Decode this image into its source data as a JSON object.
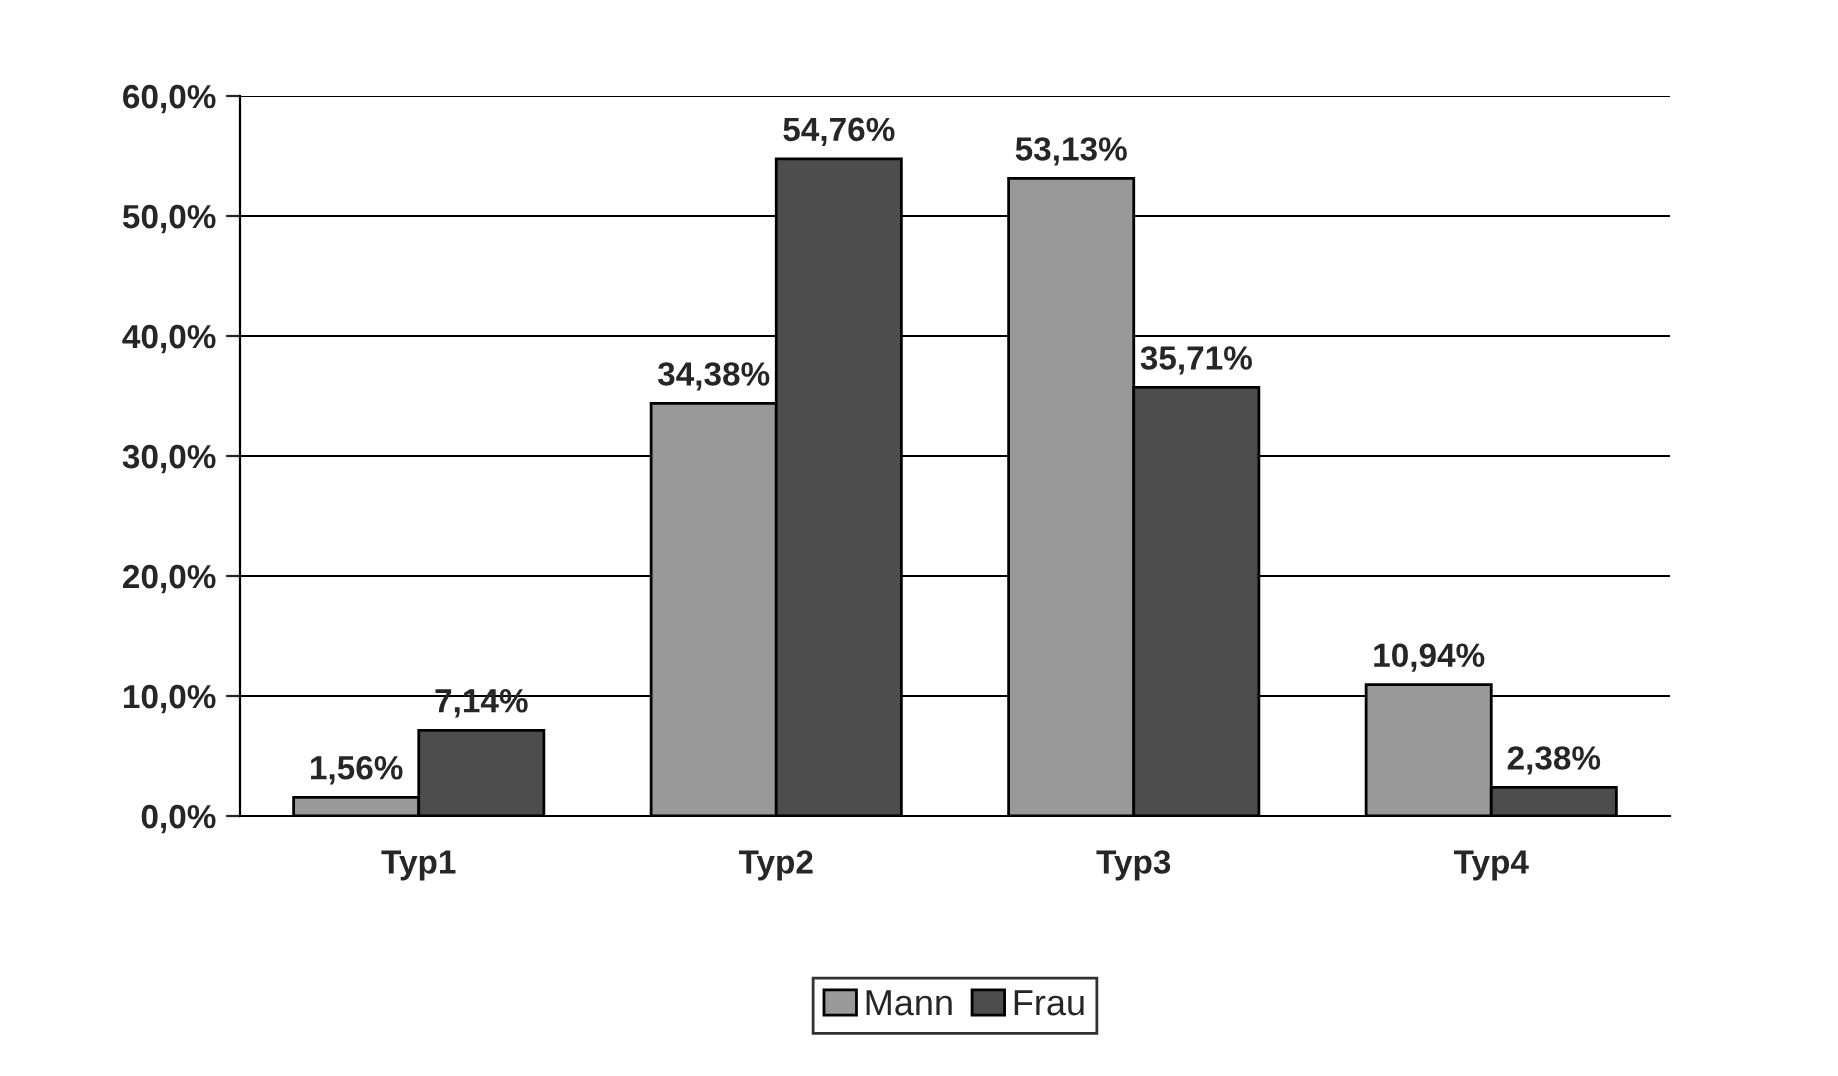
{
  "chart_data": {
    "type": "bar",
    "categories": [
      "Typ1",
      "Typ2",
      "Typ3",
      "Typ4"
    ],
    "series": [
      {
        "name": "Mann",
        "color": "#999999",
        "values": [
          1.56,
          34.38,
          53.13,
          10.94
        ],
        "value_labels": [
          "1,56%",
          "34,38%",
          "53,13%",
          "10,94%"
        ]
      },
      {
        "name": "Frau",
        "color": "#4d4d4d",
        "values": [
          7.14,
          54.76,
          35.71,
          2.38
        ],
        "value_labels": [
          "7,14%",
          "54,76%",
          "35,71%",
          "2,38%"
        ]
      }
    ],
    "ylim": [
      0,
      60
    ],
    "yticks": [
      {
        "value": 0,
        "label": "0,0%"
      },
      {
        "value": 10,
        "label": "10,0%"
      },
      {
        "value": 20,
        "label": "20,0%"
      },
      {
        "value": 30,
        "label": "30,0%"
      },
      {
        "value": 40,
        "label": "40,0%"
      },
      {
        "value": 50,
        "label": "50,0%"
      },
      {
        "value": 60,
        "label": "60,0%"
      }
    ],
    "grid": "y",
    "legend": "bottom"
  }
}
